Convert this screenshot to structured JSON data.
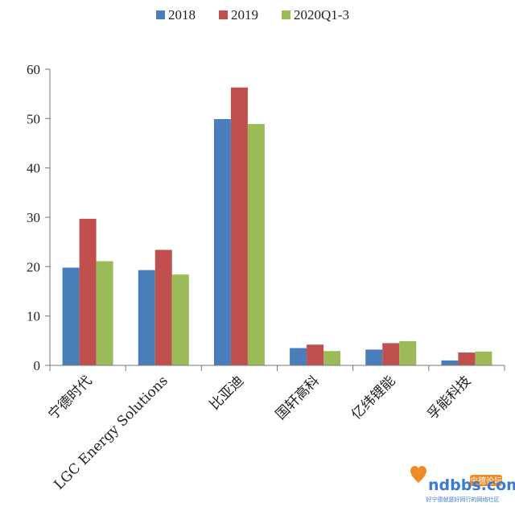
{
  "chart_data": {
    "type": "bar",
    "title": "",
    "xlabel": "",
    "ylabel": "",
    "ylim": [
      0,
      60
    ],
    "yticks": [
      0,
      10,
      20,
      30,
      40,
      50,
      60
    ],
    "categories": [
      "宁德时代",
      "LGC Energy Solutions",
      "比亚迪",
      "国轩高科",
      "亿纬锂能",
      "孚能科技"
    ],
    "series": [
      {
        "name": "2018",
        "color": "#4a7ebb",
        "values": [
          19.8,
          19.3,
          49.9,
          3.5,
          3.2,
          1.0
        ]
      },
      {
        "name": "2019",
        "color": "#c0504d",
        "values": [
          29.7,
          23.4,
          56.3,
          4.2,
          4.5,
          2.6
        ]
      },
      {
        "name": "2020Q1-3",
        "color": "#9bbb59",
        "values": [
          21.1,
          18.4,
          48.9,
          2.9,
          4.9,
          2.8
        ]
      }
    ],
    "legend_position": "top-center",
    "grid": false
  },
  "watermark": {
    "domain": "ndbbs.com",
    "badge": "宁德论坛",
    "tagline": "好宁德就是好同行的网络社区"
  }
}
